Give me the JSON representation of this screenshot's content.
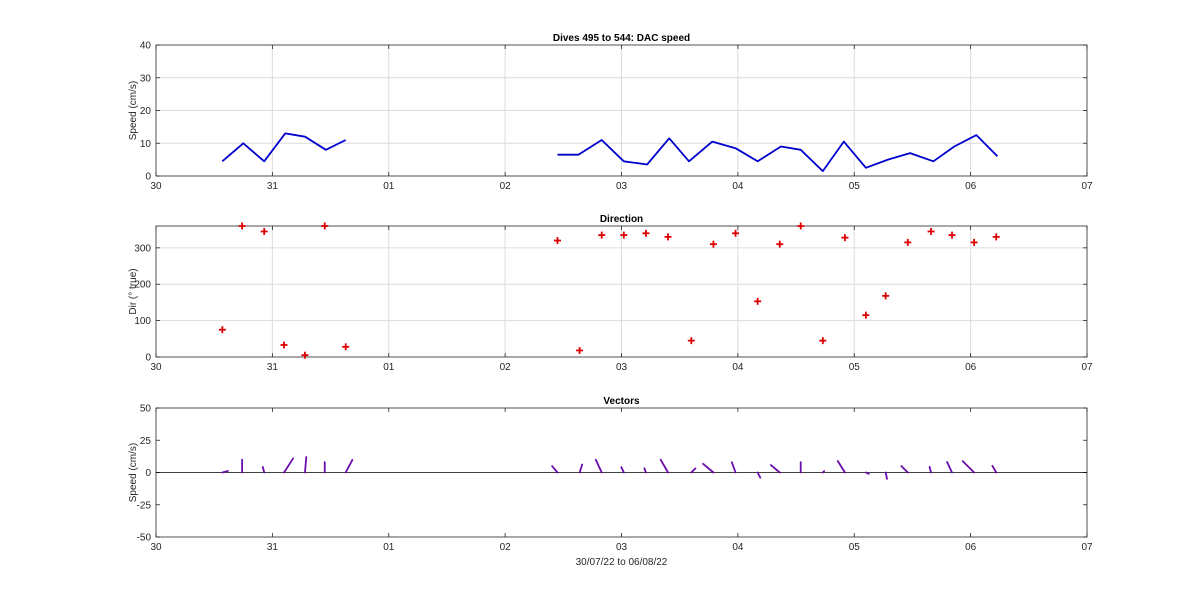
{
  "chart_data": [
    {
      "type": "line",
      "title": "Dives 495 to 544: DAC speed",
      "xlabel": "",
      "ylabel": "Speed (cm/s)",
      "xlim": [
        0,
        8
      ],
      "x_ticks": [
        0,
        1,
        2,
        3,
        4,
        5,
        6,
        7,
        8
      ],
      "x_tick_labels": [
        "30",
        "31",
        "01",
        "02",
        "03",
        "04",
        "05",
        "06",
        "07"
      ],
      "ylim": [
        0,
        40
      ],
      "y_ticks": [
        0,
        10,
        20,
        30,
        40
      ],
      "y_tick_labels": [
        "0",
        "10",
        "20",
        "30",
        "40"
      ],
      "grid": true,
      "color": "#0000cc",
      "series": [
        {
          "x": [
            0.57,
            0.75,
            0.93,
            1.11,
            1.28,
            1.46,
            1.63
          ],
          "values": [
            4.5,
            10,
            4.5,
            13,
            12,
            8,
            11
          ]
        },
        {
          "x": [
            3.45,
            3.63,
            3.83,
            4.02,
            4.22,
            4.41,
            4.58,
            4.78,
            4.98,
            5.17,
            5.37,
            5.54,
            5.73,
            5.91,
            6.1,
            6.29,
            6.48,
            6.68,
            6.86,
            7.05,
            7.23
          ],
          "values": [
            6.5,
            6.5,
            11,
            4.5,
            3.5,
            11.5,
            4.5,
            10.5,
            8.5,
            4.5,
            9,
            8,
            1.5,
            10.5,
            2.5,
            5,
            7,
            4.5,
            9,
            12.5,
            6
          ]
        }
      ]
    },
    {
      "type": "scatter",
      "title": "Direction",
      "xlabel": "",
      "ylabel": "Dir (° true)",
      "xlim": [
        0,
        8
      ],
      "x_ticks": [
        0,
        1,
        2,
        3,
        4,
        5,
        6,
        7,
        8
      ],
      "x_tick_labels": [
        "30",
        "31",
        "01",
        "02",
        "03",
        "04",
        "05",
        "06",
        "07"
      ],
      "ylim": [
        0,
        360
      ],
      "y_ticks": [
        0,
        100,
        200,
        300
      ],
      "y_tick_labels": [
        "0",
        "100",
        "200",
        "300"
      ],
      "grid": true,
      "color": "#dd0000",
      "marker": "+",
      "x": [
        0.57,
        0.74,
        0.93,
        1.1,
        1.28,
        1.45,
        1.63,
        3.45,
        3.64,
        3.83,
        4.02,
        4.21,
        4.4,
        4.6,
        4.79,
        4.98,
        5.17,
        5.36,
        5.54,
        5.73,
        5.92,
        6.1,
        6.27,
        6.46,
        6.66,
        6.84,
        7.03,
        7.22
      ],
      "values": [
        75,
        360,
        345,
        33,
        5,
        360,
        28,
        320,
        18,
        335,
        335,
        340,
        330,
        45,
        310,
        340,
        153,
        310,
        360,
        45,
        328,
        115,
        168,
        315,
        345,
        335,
        315,
        330
      ]
    },
    {
      "type": "vector",
      "title": "Vectors",
      "xlabel": "30/07/22 to 06/08/22",
      "ylabel": "Speed (cm/s)",
      "xlim": [
        0,
        8
      ],
      "x_ticks": [
        0,
        1,
        2,
        3,
        4,
        5,
        6,
        7,
        8
      ],
      "x_tick_labels": [
        "30",
        "31",
        "01",
        "02",
        "03",
        "04",
        "05",
        "06",
        "07"
      ],
      "ylim": [
        -50,
        50
      ],
      "y_ticks": [
        -50,
        -25,
        0,
        25,
        50
      ],
      "y_tick_labels": [
        "-50",
        "-25",
        "0",
        "25",
        "50"
      ],
      "grid": false,
      "color": "#6a0dad",
      "x": [
        0.57,
        0.74,
        0.93,
        1.1,
        1.28,
        1.45,
        1.63,
        3.45,
        3.64,
        3.83,
        4.02,
        4.21,
        4.4,
        4.6,
        4.79,
        4.98,
        5.17,
        5.36,
        5.54,
        5.73,
        5.92,
        6.1,
        6.27,
        6.46,
        6.66,
        6.84,
        7.03,
        7.22
      ],
      "speed": [
        4.5,
        10,
        4.5,
        13,
        12,
        8,
        11,
        6.5,
        6.5,
        11,
        4.5,
        3.5,
        11.5,
        4.5,
        10.5,
        8.5,
        4.5,
        9,
        8,
        1.5,
        10.5,
        2.5,
        5,
        7,
        4.5,
        9,
        12.5,
        6
      ],
      "direction": [
        75,
        360,
        345,
        33,
        5,
        360,
        28,
        320,
        18,
        335,
        335,
        340,
        330,
        45,
        310,
        340,
        153,
        310,
        360,
        45,
        328,
        115,
        168,
        315,
        345,
        335,
        315,
        330
      ]
    }
  ]
}
